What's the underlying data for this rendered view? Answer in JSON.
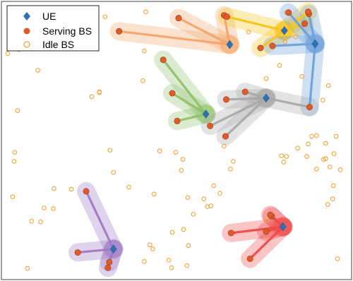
{
  "chart_data": {
    "type": "scatter",
    "title": "",
    "xlabel": "",
    "ylabel": "",
    "xlim": [
      0,
      100
    ],
    "ylim": [
      0,
      80
    ],
    "grid": false,
    "legend": {
      "placement": "top-left",
      "entries": [
        {
          "name": "UE",
          "marker": "diamond",
          "color": "#2f6fb4"
        },
        {
          "name": "Serving BS",
          "marker": "filled-circle",
          "color": "#e05b2c"
        },
        {
          "name": "Idle BS",
          "marker": "open-circle",
          "color": "#f2a33a"
        }
      ]
    },
    "series": [
      {
        "name": "UE",
        "points": [
          [
            65.2,
            67.6
          ],
          [
            80.8,
            71.6
          ],
          [
            89.6,
            67.8
          ],
          [
            58.4,
            47.6
          ],
          [
            75.6,
            52.2
          ],
          [
            80.4,
            15.2
          ],
          [
            32.0,
            8.8
          ]
        ]
      },
      {
        "name": "Serving BS",
        "points": [
          [
            33.6,
            71.4
          ],
          [
            50.6,
            75.2
          ],
          [
            63.6,
            76.0
          ],
          [
            74.0,
            66.6
          ],
          [
            82.0,
            76.8
          ],
          [
            87.8,
            76.4
          ],
          [
            64.4,
            75.6
          ],
          [
            87.6,
            77.0
          ],
          [
            86.6,
            73.6
          ],
          [
            88.0,
            49.6
          ],
          [
            77.4,
            67.2
          ],
          [
            46.2,
            63.2
          ],
          [
            48.8,
            53.6
          ],
          [
            50.2,
            45.6
          ],
          [
            69.6,
            54.0
          ],
          [
            64.2,
            51.8
          ],
          [
            59.6,
            44.2
          ],
          [
            64.0,
            41.2
          ],
          [
            77.2,
            18.2
          ],
          [
            75.6,
            13.8
          ],
          [
            65.6,
            13.4
          ],
          [
            71.0,
            6.0
          ],
          [
            76.8,
            18.6
          ],
          [
            24.2,
            25.4
          ],
          [
            21.8,
            7.8
          ],
          [
            30.8,
            5.0
          ],
          [
            30.4,
            3.4
          ]
        ]
      },
      {
        "name": "Idle BS",
        "points": [
          [
            29.6,
            75.6
          ],
          [
            41.2,
            77.0
          ],
          [
            5.0,
            66.2
          ],
          [
            10.4,
            60.2
          ],
          [
            1.8,
            65.0
          ],
          [
            40.8,
            65.8
          ],
          [
            28.0,
            54.0
          ],
          [
            40.4,
            57.2
          ],
          [
            4.6,
            48.6
          ],
          [
            28.0,
            53.8
          ],
          [
            25.8,
            52.6
          ],
          [
            45.2,
            37.0
          ],
          [
            49.8,
            36.6
          ],
          [
            3.8,
            36.6
          ],
          [
            3.6,
            34.0
          ],
          [
            31.0,
            37.2
          ],
          [
            32.0,
            30.8
          ],
          [
            51.8,
            34.6
          ],
          [
            51.4,
            31.4
          ],
          [
            36.4,
            26.6
          ],
          [
            15.0,
            26.2
          ],
          [
            20.0,
            26.0
          ],
          [
            3.2,
            23.8
          ],
          [
            8.6,
            16.8
          ],
          [
            11.2,
            16.6
          ],
          [
            14.8,
            20.4
          ],
          [
            12.2,
            20.6
          ],
          [
            43.6,
            24.6
          ],
          [
            53.2,
            23.6
          ],
          [
            58.8,
            21.0
          ],
          [
            54.8,
            18.8
          ],
          [
            48.8,
            13.6
          ],
          [
            52.0,
            14.4
          ],
          [
            42.4,
            10.0
          ],
          [
            43.2,
            8.8
          ],
          [
            53.4,
            9.8
          ],
          [
            40.8,
            5.2
          ],
          [
            47.8,
            5.6
          ],
          [
            48.6,
            3.4
          ],
          [
            53.0,
            4.0
          ],
          [
            7.4,
            3.2
          ],
          [
            63.6,
            38.4
          ],
          [
            66.2,
            34.0
          ],
          [
            65.4,
            31.8
          ],
          [
            62.4,
            24.8
          ],
          [
            60.6,
            27.0
          ],
          [
            87.2,
            35.4
          ],
          [
            92.6,
            34.8
          ],
          [
            95.0,
            36.2
          ],
          [
            93.8,
            32.4
          ],
          [
            90.0,
            31.8
          ],
          [
            93.2,
            21.6
          ],
          [
            94.6,
            23.2
          ],
          [
            94.8,
            27.0
          ],
          [
            92.6,
            39.2
          ],
          [
            95.6,
            41.2
          ],
          [
            90.0,
            41.4
          ],
          [
            84.6,
            37.8
          ],
          [
            81.4,
            35.4
          ],
          [
            91.8,
            51.6
          ],
          [
            93.4,
            55.8
          ],
          [
            80.6,
            33.8
          ],
          [
            80.0,
            35.6
          ],
          [
            76.0,
            17.0
          ],
          [
            96.0,
            6.0
          ],
          [
            96.8,
            31.6
          ],
          [
            92.0,
            34.6
          ],
          [
            87.6,
            39.0
          ],
          [
            88.6,
            41.2
          ],
          [
            75.6,
            57.8
          ],
          [
            70.6,
            71.2
          ],
          [
            81.0,
            68.4
          ],
          [
            84.0,
            69.8
          ],
          [
            79.4,
            61.6
          ],
          [
            85.8,
            58.4
          ],
          [
            81.4,
            76.8
          ],
          [
            59.8,
            21.2
          ],
          [
            57.8,
            23.2
          ]
        ]
      }
    ],
    "clusters": [
      {
        "ue": [
          65.2,
          67.6
        ],
        "bs": [
          [
            33.6,
            71.4
          ],
          [
            50.6,
            75.2
          ],
          [
            63.6,
            76.0
          ]
        ],
        "color": "#f4a46a"
      },
      {
        "ue": [
          80.8,
          71.6
        ],
        "bs": [
          [
            74.0,
            66.6
          ],
          [
            64.4,
            75.6
          ],
          [
            86.6,
            73.6
          ],
          [
            87.6,
            77.0
          ]
        ],
        "color": "#f5c518"
      },
      {
        "ue": [
          89.6,
          67.8
        ],
        "bs": [
          [
            82.0,
            76.8
          ],
          [
            87.8,
            76.4
          ],
          [
            77.4,
            67.2
          ],
          [
            88.0,
            49.6
          ]
        ],
        "color": "#6aa0d8"
      },
      {
        "ue": [
          58.4,
          47.6
        ],
        "bs": [
          [
            46.2,
            63.2
          ],
          [
            48.8,
            53.6
          ],
          [
            50.2,
            45.6
          ]
        ],
        "color": "#8fc06a"
      },
      {
        "ue": [
          75.6,
          52.2
        ],
        "bs": [
          [
            88.0,
            49.6
          ],
          [
            69.6,
            54.0
          ],
          [
            64.2,
            51.8
          ],
          [
            59.6,
            44.2
          ],
          [
            64.0,
            41.2
          ]
        ],
        "color": "#a9a9a9"
      },
      {
        "ue": [
          80.4,
          15.2
        ],
        "bs": [
          [
            77.2,
            18.2
          ],
          [
            75.6,
            13.8
          ],
          [
            65.6,
            13.4
          ],
          [
            71.0,
            6.0
          ],
          [
            76.8,
            18.6
          ]
        ],
        "color": "#f04a4a"
      },
      {
        "ue": [
          32.0,
          8.8
        ],
        "bs": [
          [
            24.2,
            25.4
          ],
          [
            21.8,
            7.8
          ],
          [
            30.8,
            5.0
          ],
          [
            30.4,
            3.4
          ]
        ],
        "color": "#a07ac4"
      }
    ]
  }
}
